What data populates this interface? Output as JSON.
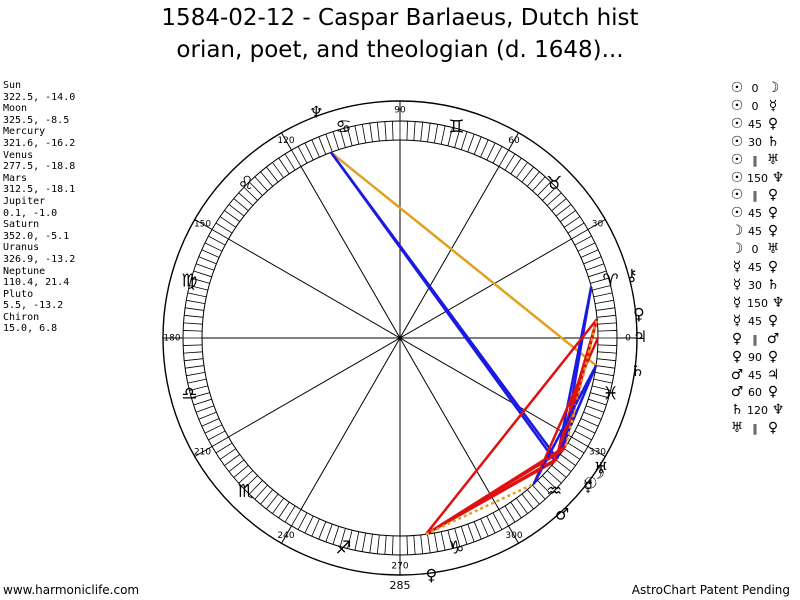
{
  "title": {
    "line1": "1584-02-12 - Caspar Barlaeus, Dutch hist",
    "line2": "orian, poet, and theologian (d. 1648)..."
  },
  "planets": [
    {
      "name": "Sun",
      "value": "322.5, -14.0"
    },
    {
      "name": "Moon",
      "value": "325.5, -8.5"
    },
    {
      "name": "Mercury",
      "value": "321.6, -16.2"
    },
    {
      "name": "Venus",
      "value": "277.5, -18.8"
    },
    {
      "name": "Mars",
      "value": "312.5, -18.1"
    },
    {
      "name": "Jupiter",
      "value": "0.1, -1.0"
    },
    {
      "name": "Saturn",
      "value": "352.0, -5.1"
    },
    {
      "name": "Uranus",
      "value": "326.9, -13.2"
    },
    {
      "name": "Neptune",
      "value": "110.4, 21.4"
    },
    {
      "name": "Pluto",
      "value": "5.5, -13.2"
    },
    {
      "name": "Chiron",
      "value": "15.0, 6.8"
    }
  ],
  "aspects": [
    {
      "p1": "☉",
      "asp": "0",
      "p2": "☽"
    },
    {
      "p1": "☉",
      "asp": "0",
      "p2": "☿"
    },
    {
      "p1": "☉",
      "asp": "45",
      "p2": "♀"
    },
    {
      "p1": "☉",
      "asp": "30",
      "p2": "♄"
    },
    {
      "p1": "☉",
      "asp": "‖",
      "p2": "♅"
    },
    {
      "p1": "☉",
      "asp": "150",
      "p2": "♆"
    },
    {
      "p1": "☉",
      "asp": "‖",
      "p2": "♀"
    },
    {
      "p1": "☉",
      "asp": "45",
      "p2": "♀"
    },
    {
      "p1": "☽",
      "asp": "45",
      "p2": "♀"
    },
    {
      "p1": "☽",
      "asp": "0",
      "p2": "♅"
    },
    {
      "p1": "☿",
      "asp": "45",
      "p2": "♀"
    },
    {
      "p1": "☿",
      "asp": "30",
      "p2": "♄"
    },
    {
      "p1": "☿",
      "asp": "150",
      "p2": "♆"
    },
    {
      "p1": "☿",
      "asp": "45",
      "p2": "♀"
    },
    {
      "p1": "♀",
      "asp": "‖",
      "p2": "♂"
    },
    {
      "p1": "♀",
      "asp": "90",
      "p2": "♀"
    },
    {
      "p1": "♂",
      "asp": "45",
      "p2": "♃"
    },
    {
      "p1": "♂",
      "asp": "60",
      "p2": "♀"
    },
    {
      "p1": "♄",
      "asp": "120",
      "p2": "♆"
    },
    {
      "p1": "♅",
      "asp": "‖",
      "p2": "♀"
    }
  ],
  "wheel": {
    "degree_labels": [
      {
        "deg": 0,
        "text": "0"
      },
      {
        "deg": 30,
        "text": "30"
      },
      {
        "deg": 60,
        "text": "60"
      },
      {
        "deg": 90,
        "text": "90"
      },
      {
        "deg": 120,
        "text": "120"
      },
      {
        "deg": 150,
        "text": "150"
      },
      {
        "deg": 180,
        "text": "180"
      },
      {
        "deg": 210,
        "text": "210"
      },
      {
        "deg": 240,
        "text": "240"
      },
      {
        "deg": 270,
        "text": "270"
      },
      {
        "deg": 300,
        "text": "300"
      },
      {
        "deg": 330,
        "text": "330"
      }
    ],
    "extra_label": "285",
    "signs": [
      {
        "deg": 15,
        "glyph": "♈"
      },
      {
        "deg": 45,
        "glyph": "♉"
      },
      {
        "deg": 75,
        "glyph": "♊"
      },
      {
        "deg": 105,
        "glyph": "♋"
      },
      {
        "deg": 135,
        "glyph": "♌"
      },
      {
        "deg": 165,
        "glyph": "♍"
      },
      {
        "deg": 195,
        "glyph": "♎"
      },
      {
        "deg": 225,
        "glyph": "♏"
      },
      {
        "deg": 255,
        "glyph": "♐"
      },
      {
        "deg": 285,
        "glyph": "♑"
      },
      {
        "deg": 315,
        "glyph": "♒"
      },
      {
        "deg": 345,
        "glyph": "♓"
      }
    ],
    "planet_glyphs": [
      {
        "name": "sun",
        "glyph": "☉",
        "lon": 322.5
      },
      {
        "name": "moon",
        "glyph": "☽",
        "lon": 325.5
      },
      {
        "name": "mercury",
        "glyph": "☿",
        "lon": 321.6
      },
      {
        "name": "venus",
        "glyph": "♀",
        "lon": 277.5
      },
      {
        "name": "mars",
        "glyph": "♂",
        "lon": 312.5
      },
      {
        "name": "jupiter",
        "glyph": "♃",
        "lon": 0.1
      },
      {
        "name": "saturn",
        "glyph": "♄",
        "lon": 352.0
      },
      {
        "name": "uranus",
        "glyph": "♅",
        "lon": 326.9
      },
      {
        "name": "neptune",
        "glyph": "♆",
        "lon": 110.4
      },
      {
        "name": "pluto",
        "glyph": "♀",
        "lon": 5.5
      },
      {
        "name": "chiron",
        "glyph": "⚷",
        "lon": 15.0
      }
    ],
    "aspect_lines": [
      {
        "from": "neptune",
        "to": "saturn",
        "color": "#e0a020",
        "style": "solid"
      },
      {
        "from": "neptune",
        "to": "sun",
        "color": "#1a1ae0",
        "style": "solid"
      },
      {
        "from": "neptune",
        "to": "mercury",
        "color": "#1a1ae0",
        "style": "solid"
      },
      {
        "from": "chiron",
        "to": "sun",
        "color": "#1a1ae0",
        "style": "solid"
      },
      {
        "from": "chiron",
        "to": "moon",
        "color": "#1a1ae0",
        "style": "solid"
      },
      {
        "from": "jupiter",
        "to": "mars",
        "color": "#e01010",
        "style": "solid"
      },
      {
        "from": "pluto",
        "to": "sun",
        "color": "#e01010",
        "style": "solid"
      },
      {
        "from": "pluto",
        "to": "mercury",
        "color": "#e01010",
        "style": "solid"
      },
      {
        "from": "pluto",
        "to": "moon",
        "color": "#e01010",
        "style": "solid"
      },
      {
        "from": "pluto",
        "to": "venus",
        "color": "#e01010",
        "style": "solid"
      },
      {
        "from": "saturn",
        "to": "sun",
        "color": "#1a1ae0",
        "style": "solid"
      },
      {
        "from": "saturn",
        "to": "mars",
        "color": "#1a1ae0",
        "style": "solid"
      },
      {
        "from": "venus",
        "to": "sun",
        "color": "#e01010",
        "style": "solid"
      },
      {
        "from": "venus",
        "to": "mercury",
        "color": "#e01010",
        "style": "solid"
      },
      {
        "from": "venus",
        "to": "moon",
        "color": "#e01010",
        "style": "solid"
      },
      {
        "from": "venus",
        "to": "uranus",
        "color": "#e01010",
        "style": "solid"
      },
      {
        "from": "venus",
        "to": "mars",
        "color": "#e0a020",
        "style": "dotted"
      },
      {
        "from": "uranus",
        "to": "pluto",
        "color": "#e0a020",
        "style": "dotted"
      },
      {
        "from": "mars",
        "to": "saturn",
        "color": "#1a1ae0",
        "style": "dotted"
      }
    ]
  },
  "footer": {
    "left": "www.harmoniclife.com",
    "right": "AstroChart Patent Pending"
  }
}
